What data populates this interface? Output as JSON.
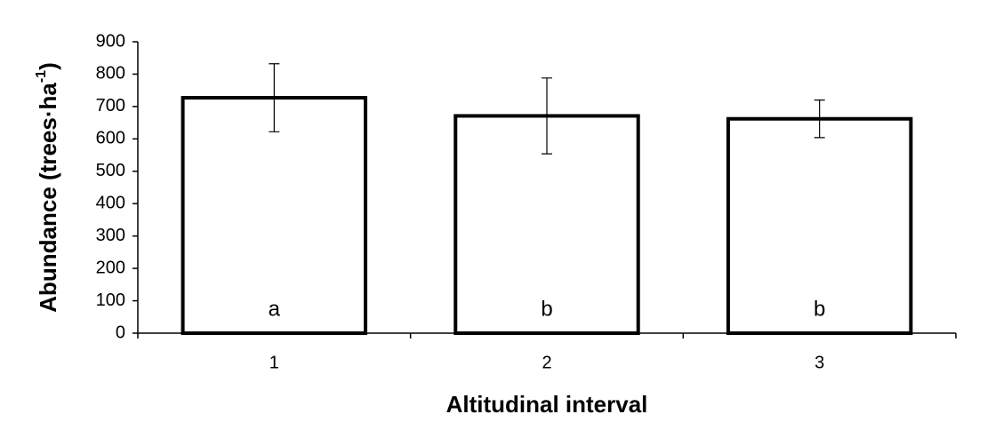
{
  "chart_data": {
    "type": "bar",
    "x_label": "Altitudinal interval",
    "y_label": "Abundance (trees·ha",
    "y_label_sup": "-1",
    "y_label_end": ")",
    "categories": [
      "1",
      "2",
      "3"
    ],
    "values": [
      727,
      671,
      662
    ],
    "errors": [
      105,
      117,
      58
    ],
    "letters": [
      "a",
      "b",
      "b"
    ],
    "color": "#ffffff",
    "edge_color": "#000000",
    "ylim": [
      0,
      900
    ],
    "yticks": [
      0,
      100,
      200,
      300,
      400,
      500,
      600,
      700,
      800,
      900
    ],
    "grid": false
  }
}
